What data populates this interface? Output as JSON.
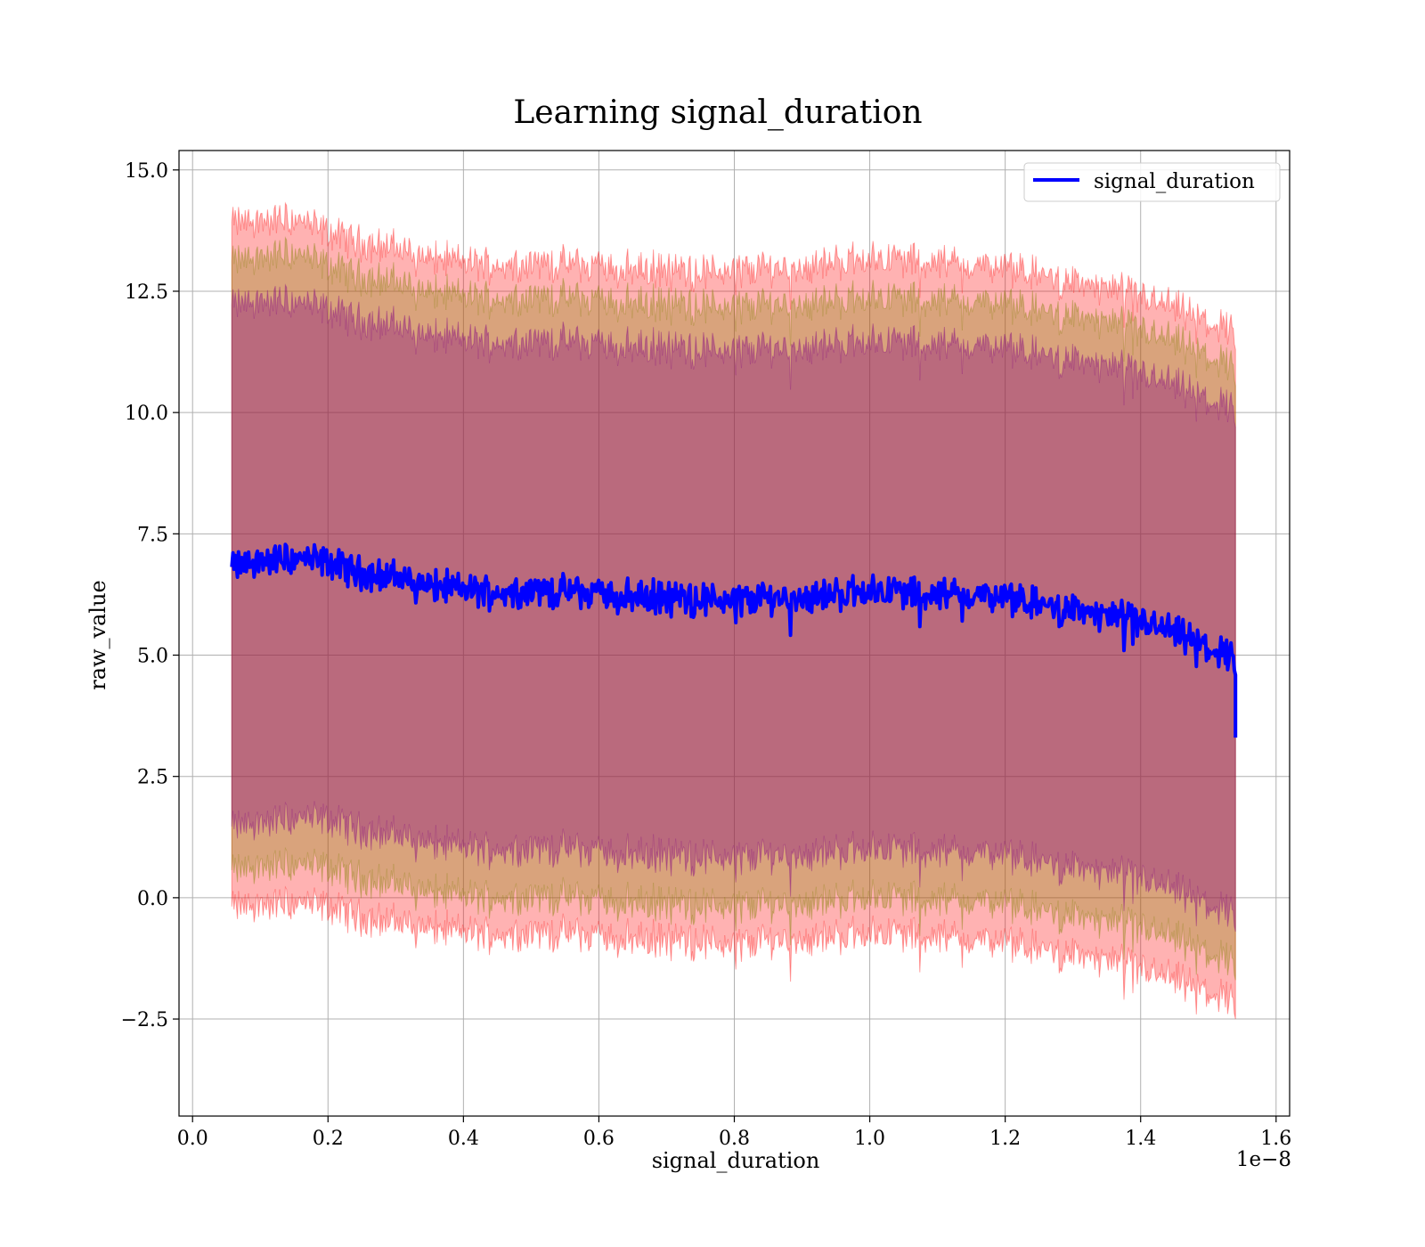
{
  "figure": {
    "title": "Learning signal_duration",
    "xlabel": "signal_duration",
    "ylabel": "raw_value",
    "x_offset_label": "1e−8"
  },
  "colors": {
    "line": "#0000ff",
    "band_outer": "#ff0000",
    "band_mid": "#808000",
    "band_inner": "#800080",
    "grid": "#b0b0b0"
  },
  "chart_data": {
    "type": "line",
    "title": "Learning signal_duration",
    "xlabel": "signal_duration",
    "ylabel": "raw_value",
    "x_scale_multiplier": "1e-8",
    "xlim": [
      -0.02,
      1.62
    ],
    "ylim": [
      -4.5,
      15.4
    ],
    "x_ticks": [
      0.0,
      0.2,
      0.4,
      0.6,
      0.8,
      1.0,
      1.2,
      1.4,
      1.6
    ],
    "x_tick_labels": [
      "0.0",
      "0.2",
      "0.4",
      "0.6",
      "0.8",
      "1.0",
      "1.2",
      "1.4",
      "1.6"
    ],
    "y_ticks": [
      -2.5,
      0.0,
      2.5,
      5.0,
      7.5,
      10.0,
      12.5,
      15.0
    ],
    "y_tick_labels": [
      "−2.5",
      "0.0",
      "2.5",
      "5.0",
      "7.5",
      "10.0",
      "12.5",
      "15.0"
    ],
    "grid": true,
    "legend_position": "top-right",
    "x_range": [
      0.058,
      1.54
    ],
    "series": [
      {
        "name": "signal_duration",
        "color": "#0000ff",
        "x": [
          0.058,
          0.1,
          0.15,
          0.2,
          0.25,
          0.3,
          0.35,
          0.4,
          0.45,
          0.5,
          0.55,
          0.6,
          0.65,
          0.7,
          0.75,
          0.8,
          0.85,
          0.9,
          0.95,
          1.0,
          1.05,
          1.1,
          1.15,
          1.2,
          1.25,
          1.3,
          1.35,
          1.4,
          1.45,
          1.5,
          1.54
        ],
        "y": [
          6.8,
          6.95,
          7.0,
          6.9,
          6.7,
          6.6,
          6.45,
          6.35,
          6.3,
          6.35,
          6.3,
          6.3,
          6.2,
          6.2,
          6.15,
          6.15,
          6.2,
          6.2,
          6.25,
          6.35,
          6.3,
          6.25,
          6.25,
          6.15,
          6.05,
          5.95,
          5.8,
          5.7,
          5.45,
          5.15,
          4.95
        ],
        "end_drop": 3.3
      }
    ],
    "bands": [
      {
        "label": "outer",
        "color": "#ff0000",
        "alpha": 0.3,
        "x": [
          0.058,
          0.1,
          0.15,
          0.2,
          0.25,
          0.3,
          0.35,
          0.4,
          0.45,
          0.5,
          0.55,
          0.6,
          0.65,
          0.7,
          0.75,
          0.8,
          0.85,
          0.9,
          0.95,
          1.0,
          1.05,
          1.1,
          1.15,
          1.2,
          1.25,
          1.3,
          1.35,
          1.4,
          1.45,
          1.5,
          1.54
        ],
        "upper": [
          13.9,
          13.95,
          14.0,
          13.7,
          13.5,
          13.4,
          13.2,
          13.1,
          13.05,
          13.1,
          13.05,
          13.05,
          12.95,
          12.95,
          12.9,
          12.95,
          13.0,
          13.0,
          13.1,
          13.2,
          13.15,
          13.1,
          13.05,
          12.95,
          12.85,
          12.7,
          12.55,
          12.4,
          12.15,
          11.85,
          11.7
        ],
        "lower": [
          -0.2,
          -0.15,
          -0.1,
          -0.2,
          -0.4,
          -0.5,
          -0.6,
          -0.7,
          -0.75,
          -0.7,
          -0.75,
          -0.75,
          -0.85,
          -0.85,
          -0.9,
          -0.95,
          -0.85,
          -0.85,
          -0.8,
          -0.7,
          -0.75,
          -0.8,
          -0.85,
          -0.95,
          -1.05,
          -1.15,
          -1.3,
          -1.45,
          -1.7,
          -1.95,
          -2.1
        ]
      },
      {
        "label": "middle",
        "color": "#808000",
        "alpha": 0.3,
        "x": [
          0.058,
          0.1,
          0.15,
          0.2,
          0.25,
          0.3,
          0.35,
          0.4,
          0.45,
          0.5,
          0.55,
          0.6,
          0.65,
          0.7,
          0.75,
          0.8,
          0.85,
          0.9,
          0.95,
          1.0,
          1.05,
          1.1,
          1.15,
          1.2,
          1.25,
          1.3,
          1.35,
          1.4,
          1.45,
          1.5,
          1.54
        ],
        "upper": [
          13.1,
          13.2,
          13.3,
          13.0,
          12.8,
          12.7,
          12.5,
          12.4,
          12.35,
          12.4,
          12.35,
          12.35,
          12.25,
          12.25,
          12.2,
          12.2,
          12.25,
          12.25,
          12.3,
          12.4,
          12.35,
          12.3,
          12.3,
          12.2,
          12.1,
          12.0,
          11.85,
          11.7,
          11.45,
          11.15,
          10.95
        ],
        "lower": [
          0.55,
          0.65,
          0.7,
          0.6,
          0.4,
          0.3,
          0.15,
          0.05,
          0.0,
          0.05,
          0.0,
          0.0,
          -0.1,
          -0.1,
          -0.15,
          -0.15,
          -0.1,
          -0.1,
          -0.05,
          0.05,
          0.0,
          -0.05,
          -0.05,
          -0.15,
          -0.25,
          -0.35,
          -0.5,
          -0.6,
          -0.85,
          -1.15,
          -1.3
        ]
      },
      {
        "label": "inner",
        "color": "#800080",
        "alpha": 0.35,
        "x": [
          0.058,
          0.1,
          0.15,
          0.2,
          0.25,
          0.3,
          0.35,
          0.4,
          0.45,
          0.5,
          0.55,
          0.6,
          0.65,
          0.7,
          0.75,
          0.8,
          0.85,
          0.9,
          0.95,
          1.0,
          1.05,
          1.1,
          1.15,
          1.2,
          1.25,
          1.3,
          1.35,
          1.4,
          1.45,
          1.5,
          1.54
        ],
        "upper": [
          12.2,
          12.3,
          12.3,
          12.1,
          11.9,
          11.8,
          11.6,
          11.5,
          11.45,
          11.5,
          11.45,
          11.45,
          11.35,
          11.35,
          11.3,
          11.3,
          11.35,
          11.35,
          11.4,
          11.5,
          11.45,
          11.4,
          11.4,
          11.3,
          11.2,
          11.1,
          10.95,
          10.8,
          10.55,
          10.25,
          10.1
        ],
        "lower": [
          1.45,
          1.55,
          1.65,
          1.6,
          1.4,
          1.3,
          1.15,
          1.05,
          1.0,
          1.05,
          1.0,
          1.0,
          0.9,
          0.9,
          0.85,
          0.85,
          0.9,
          0.9,
          0.95,
          1.05,
          1.0,
          0.95,
          0.95,
          0.85,
          0.75,
          0.65,
          0.5,
          0.4,
          0.15,
          -0.15,
          -0.3
        ]
      }
    ],
    "legend": [
      "signal_duration"
    ]
  }
}
